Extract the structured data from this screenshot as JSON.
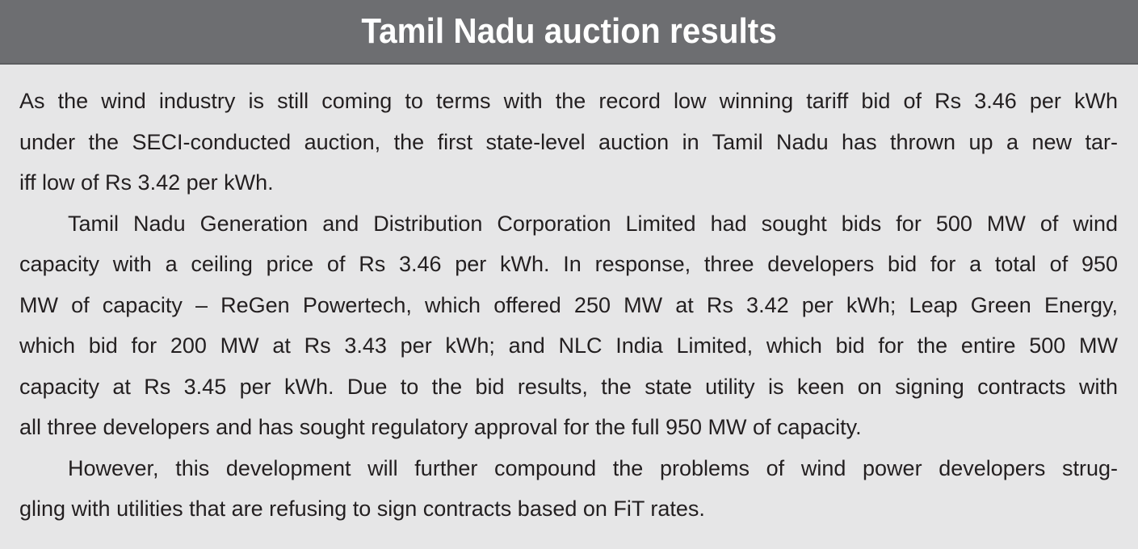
{
  "title": "Tamil Nadu auction results",
  "paragraphs": [
    {
      "lines": [
        "As the wind industry is still coming to terms with the record low winning tariff bid of Rs 3.46 per kWh",
        "under the SECI-conducted auction, the first state-level auction in Tamil Nadu has thrown up a new tar-",
        "iff low of Rs 3.42 per kWh."
      ]
    },
    {
      "lines": [
        "Tamil Nadu Generation and Distribution Corporation Limited had sought bids for 500 MW of wind",
        "capacity with a ceiling price of Rs 3.46 per kWh. In response, three developers bid for a total of 950",
        "MW of capacity – ReGen Powertech, which offered 250 MW at Rs 3.42 per kWh; Leap Green Energy,",
        "which bid for 200 MW at Rs 3.43 per kWh; and NLC India Limited, which bid for the entire 500 MW",
        "capacity at Rs 3.45 per kWh. Due to the bid results, the state utility is keen on signing contracts with",
        "all three developers and has sought regulatory approval for the full 950 MW of capacity."
      ]
    },
    {
      "lines": [
        "However, this development will further compound the problems of wind power developers strug-",
        "gling with utilities that are refusing to sign contracts based on FiT rates."
      ]
    }
  ]
}
